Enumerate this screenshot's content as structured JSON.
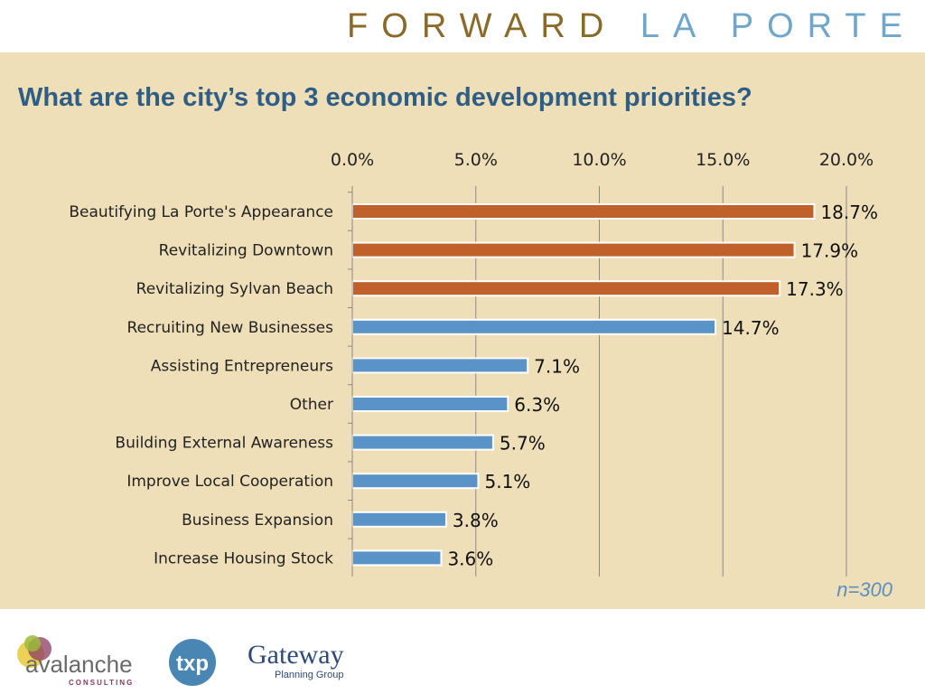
{
  "header": {
    "brand_part1": "FORWARD",
    "brand_part2": "LA PORTE"
  },
  "chart_data": {
    "type": "bar",
    "orientation": "horizontal",
    "title": "What are the city’s top 3 economic development priorities?",
    "categories": [
      "Beautifying La Porte's Appearance",
      "Revitalizing Downtown",
      "Revitalizing Sylvan Beach",
      "Recruiting New Businesses",
      "Assisting Entrepreneurs",
      "Other",
      "Building External Awareness",
      "Improve Local Cooperation",
      "Business Expansion",
      "Increase Housing Stock"
    ],
    "values": [
      18.7,
      17.9,
      17.3,
      14.7,
      7.1,
      6.3,
      5.7,
      5.1,
      3.8,
      3.6
    ],
    "value_labels": [
      "18.7%",
      "17.9%",
      "17.3%",
      "14.7%",
      "7.1%",
      "6.3%",
      "5.7%",
      "5.1%",
      "3.8%",
      "3.6%"
    ],
    "xlim": [
      0,
      20
    ],
    "x_ticks": [
      "0.0%",
      "5.0%",
      "10.0%",
      "15.0%",
      "20.0%"
    ],
    "x_axis_position": "top",
    "grid": "vertical",
    "legend": "none",
    "colors": {
      "highlight": "#c0602a",
      "default": "#5a93c8",
      "background": "#efdfb8",
      "grid": "#8a8a8a"
    },
    "highlighted_top": 3
  },
  "note": "n=300",
  "footer": {
    "logo1_text": "avalanche",
    "logo1_sub": "CONSULTING",
    "logo2_text": "txp",
    "logo3_text": "Gateway",
    "logo3_sub": "Planning Group"
  }
}
